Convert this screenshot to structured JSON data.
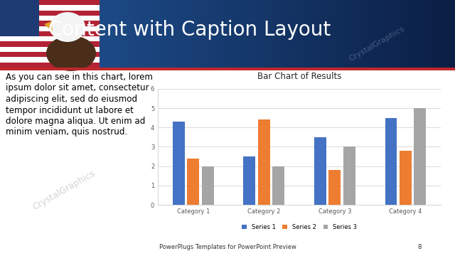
{
  "slide": {
    "title": "Content with Caption Layout",
    "caption": "As you can see in this chart, lorem\nipsum dolor sit amet, consectetur\nadipiscing elit, sed do eiusmod\ntempor incididunt ut labore et\ndolore magna aliqua. Ut enim ad\nminim veniam, quis nostrud.",
    "footer": "PowerPlugs Templates for PowerPoint Preview",
    "page_number": "8",
    "watermark": "CrystalGraphics"
  },
  "chart_data": {
    "type": "bar",
    "title": "Bar Chart of Results",
    "categories": [
      "Category 1",
      "Category 2",
      "Category 3",
      "Category 4"
    ],
    "series": [
      {
        "name": "Series 1",
        "color": "#4472c4",
        "values": [
          4.3,
          2.5,
          3.5,
          4.5
        ]
      },
      {
        "name": "Series 2",
        "color": "#ed7d31",
        "values": [
          2.4,
          4.4,
          1.8,
          2.8
        ]
      },
      {
        "name": "Series 3",
        "color": "#a5a5a5",
        "values": [
          2,
          2,
          3,
          5
        ]
      }
    ],
    "ylim": [
      0,
      6
    ],
    "yticks": [
      0,
      1,
      2,
      3,
      4,
      5,
      6
    ],
    "grid": true,
    "legend": "bottom"
  }
}
